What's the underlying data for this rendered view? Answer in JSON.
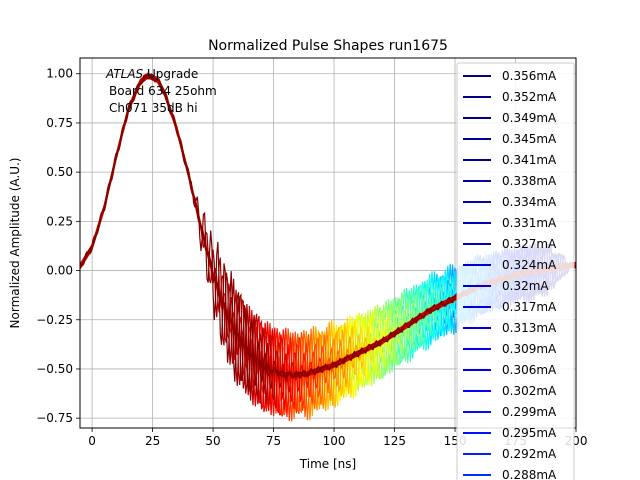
{
  "chart_data": {
    "type": "line",
    "title": "Normalized Pulse Shapes run1675",
    "xlabel": "Time [ns]",
    "ylabel": "Normalized Amplitude (A.U.)",
    "xlim": [
      -5,
      200
    ],
    "ylim": [
      -0.8,
      1.08
    ],
    "xticks": [
      0,
      25,
      50,
      75,
      100,
      125,
      150,
      175,
      200
    ],
    "yticks": [
      -0.75,
      -0.5,
      -0.25,
      0.0,
      0.25,
      0.5,
      0.75,
      1.0
    ],
    "xtick_labels": [
      "0",
      "25",
      "50",
      "75",
      "100",
      "125",
      "150",
      "175",
      "200"
    ],
    "ytick_labels": [
      "−0.75",
      "−0.50",
      "−0.25",
      "0.00",
      "0.25",
      "0.50",
      "0.75",
      "1.00"
    ],
    "grid": true,
    "legend_position": "right",
    "annotation": {
      "line1_italic": "ATLAS",
      "line1_rest": " Upgrade",
      "line2": "Board 634 25ohm",
      "line3": "Ch071 35dB hi"
    },
    "series": [
      {
        "name": "0.356mA",
        "color": "#000080"
      },
      {
        "name": "0.352mA",
        "color": "#000084"
      },
      {
        "name": "0.349mA",
        "color": "#000089"
      },
      {
        "name": "0.345mA",
        "color": "#000092"
      },
      {
        "name": "0.341mA",
        "color": "#00009b"
      },
      {
        "name": "0.338mA",
        "color": "#0000a4"
      },
      {
        "name": "0.334mA",
        "color": "#0000ad"
      },
      {
        "name": "0.331mA",
        "color": "#0000b6"
      },
      {
        "name": "0.327mA",
        "color": "#0000bf"
      },
      {
        "name": "0.324mA",
        "color": "#0000c8"
      },
      {
        "name": "0.32mA",
        "color": "#0000d1"
      },
      {
        "name": "0.317mA",
        "color": "#0000da"
      },
      {
        "name": "0.313mA",
        "color": "#0000e3"
      },
      {
        "name": "0.309mA",
        "color": "#0000ec"
      },
      {
        "name": "0.306mA",
        "color": "#0000f5"
      },
      {
        "name": "0.302mA",
        "color": "#0000ff"
      },
      {
        "name": "0.299mA",
        "color": "#0008ff"
      },
      {
        "name": "0.295mA",
        "color": "#0010ff"
      },
      {
        "name": "0.292mA",
        "color": "#0020ff"
      },
      {
        "name": "0.288mA",
        "color": "#0030ff"
      }
    ],
    "curve_description": "Pulse shape: rises from 0.0 at -5 ns to 1.0 peak near 23 ns, falls to -0.5 near 80 ns, returns to ~0 near 200 ns; many overlaid curves colored by current (jet colormap) with ringing between 40-170 ns",
    "main_curve": {
      "x": [
        -5,
        0,
        5,
        10,
        15,
        20,
        23,
        27,
        30,
        35,
        40,
        45,
        50,
        55,
        60,
        65,
        70,
        75,
        80,
        85,
        90,
        95,
        100,
        110,
        120,
        130,
        140,
        150,
        160,
        170,
        180,
        190,
        200
      ],
      "y": [
        0.02,
        0.12,
        0.32,
        0.58,
        0.82,
        0.96,
        0.99,
        0.97,
        0.9,
        0.72,
        0.48,
        0.22,
        -0.02,
        -0.2,
        -0.33,
        -0.42,
        -0.48,
        -0.51,
        -0.53,
        -0.53,
        -0.52,
        -0.5,
        -0.48,
        -0.42,
        -0.36,
        -0.28,
        -0.2,
        -0.14,
        -0.08,
        -0.04,
        -0.01,
        0.01,
        0.03
      ]
    }
  }
}
